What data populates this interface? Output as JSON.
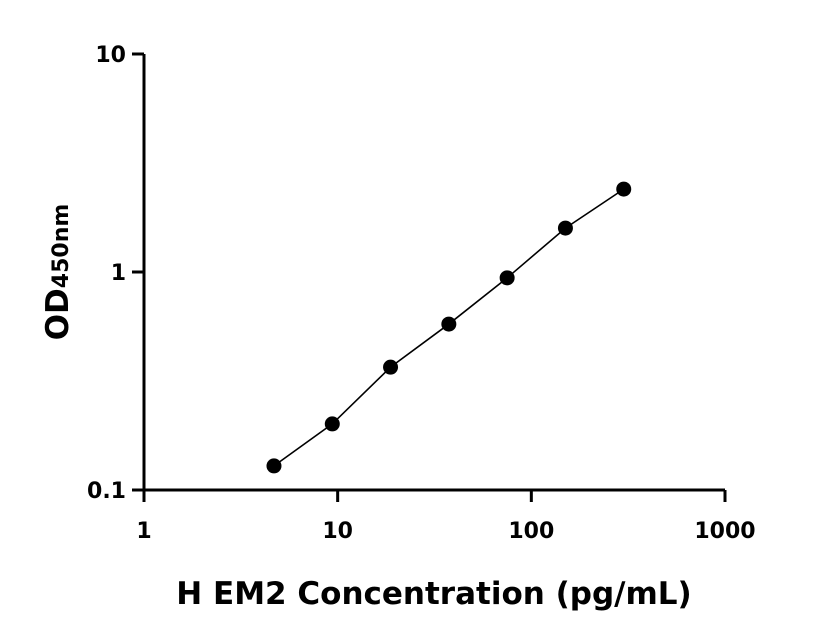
{
  "chart_data": {
    "type": "scatter",
    "title": "",
    "xlabel": "H EM2 Concentration (pg/mL)",
    "ylabel": {
      "main": "OD",
      "sub": "450nm"
    },
    "xscale": "log",
    "yscale": "log",
    "xlim": [
      1,
      1000
    ],
    "ylim": [
      0.1,
      10
    ],
    "xticks": [
      "1",
      "10",
      "100",
      "1000"
    ],
    "yticks": [
      "0.1",
      "1",
      "10"
    ],
    "grid": false,
    "legend": "none",
    "fit_line": true,
    "marker_color": "#000000",
    "series": [
      {
        "x": [
          4.69,
          9.38,
          18.75,
          37.5,
          75,
          150,
          300
        ],
        "y": [
          0.129,
          0.201,
          0.366,
          0.577,
          0.94,
          1.59,
          2.4
        ]
      }
    ]
  }
}
